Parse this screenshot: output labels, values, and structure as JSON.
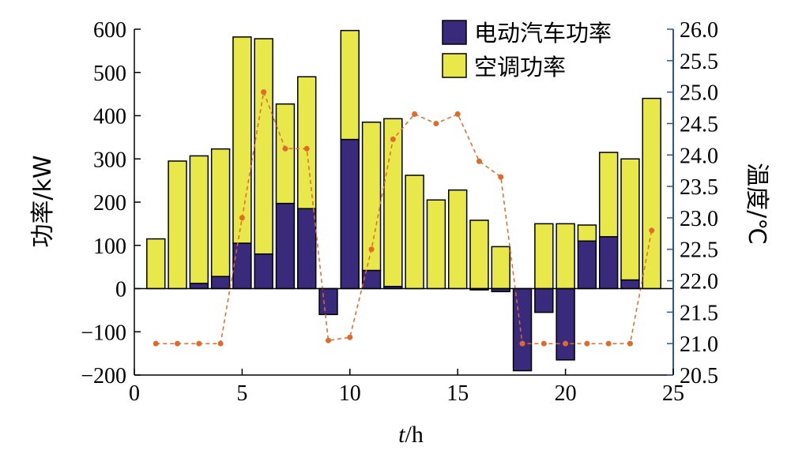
{
  "chart_data": {
    "type": "bar",
    "xlabel_var": "t",
    "xlabel_unit": "/h",
    "ylabel": "功率/kW",
    "y2label": "温度/℃",
    "xlim": [
      0,
      25
    ],
    "ylim": [
      -200,
      600
    ],
    "y2lim": [
      20.5,
      26.0
    ],
    "x_ticks": [
      "0",
      "5",
      "10",
      "15",
      "20",
      "25"
    ],
    "y_ticks": [
      "−200",
      "−100",
      "0",
      "100",
      "200",
      "300",
      "400",
      "500",
      "600"
    ],
    "y2_ticks": [
      "20.5",
      "21.0",
      "21.5",
      "22.0",
      "22.5",
      "23.0",
      "23.5",
      "24.0",
      "24.5",
      "25.0",
      "25.5",
      "26.0"
    ],
    "legend_position": "top-right",
    "x": [
      1,
      2,
      3,
      4,
      5,
      6,
      7,
      8,
      9,
      10,
      11,
      12,
      13,
      14,
      15,
      16,
      17,
      18,
      19,
      20,
      21,
      22,
      23,
      24
    ],
    "series": [
      {
        "name": "电动汽车功率",
        "color": "#3a2a7c",
        "values": [
          0,
          0,
          12,
          28,
          105,
          80,
          197,
          185,
          -60,
          345,
          42,
          5,
          0,
          0,
          0,
          -3,
          -7,
          -190,
          -55,
          -165,
          110,
          120,
          20,
          0
        ]
      },
      {
        "name": "空调功率",
        "color": "#e8e84a",
        "values": [
          115,
          295,
          295,
          295,
          477,
          498,
          230,
          305,
          0,
          252,
          343,
          388,
          262,
          205,
          228,
          158,
          97,
          0,
          150,
          150,
          37,
          195,
          280,
          440
        ]
      },
      {
        "name": "温度",
        "axis": "right",
        "color": "#e06a2c",
        "values": [
          21.0,
          21.0,
          21.0,
          21.0,
          23.0,
          25.0,
          24.1,
          24.1,
          21.05,
          21.1,
          22.5,
          24.25,
          24.65,
          24.5,
          24.65,
          23.9,
          23.65,
          21.0,
          21.0,
          21.0,
          21.0,
          21.0,
          21.0,
          22.8
        ]
      }
    ]
  }
}
